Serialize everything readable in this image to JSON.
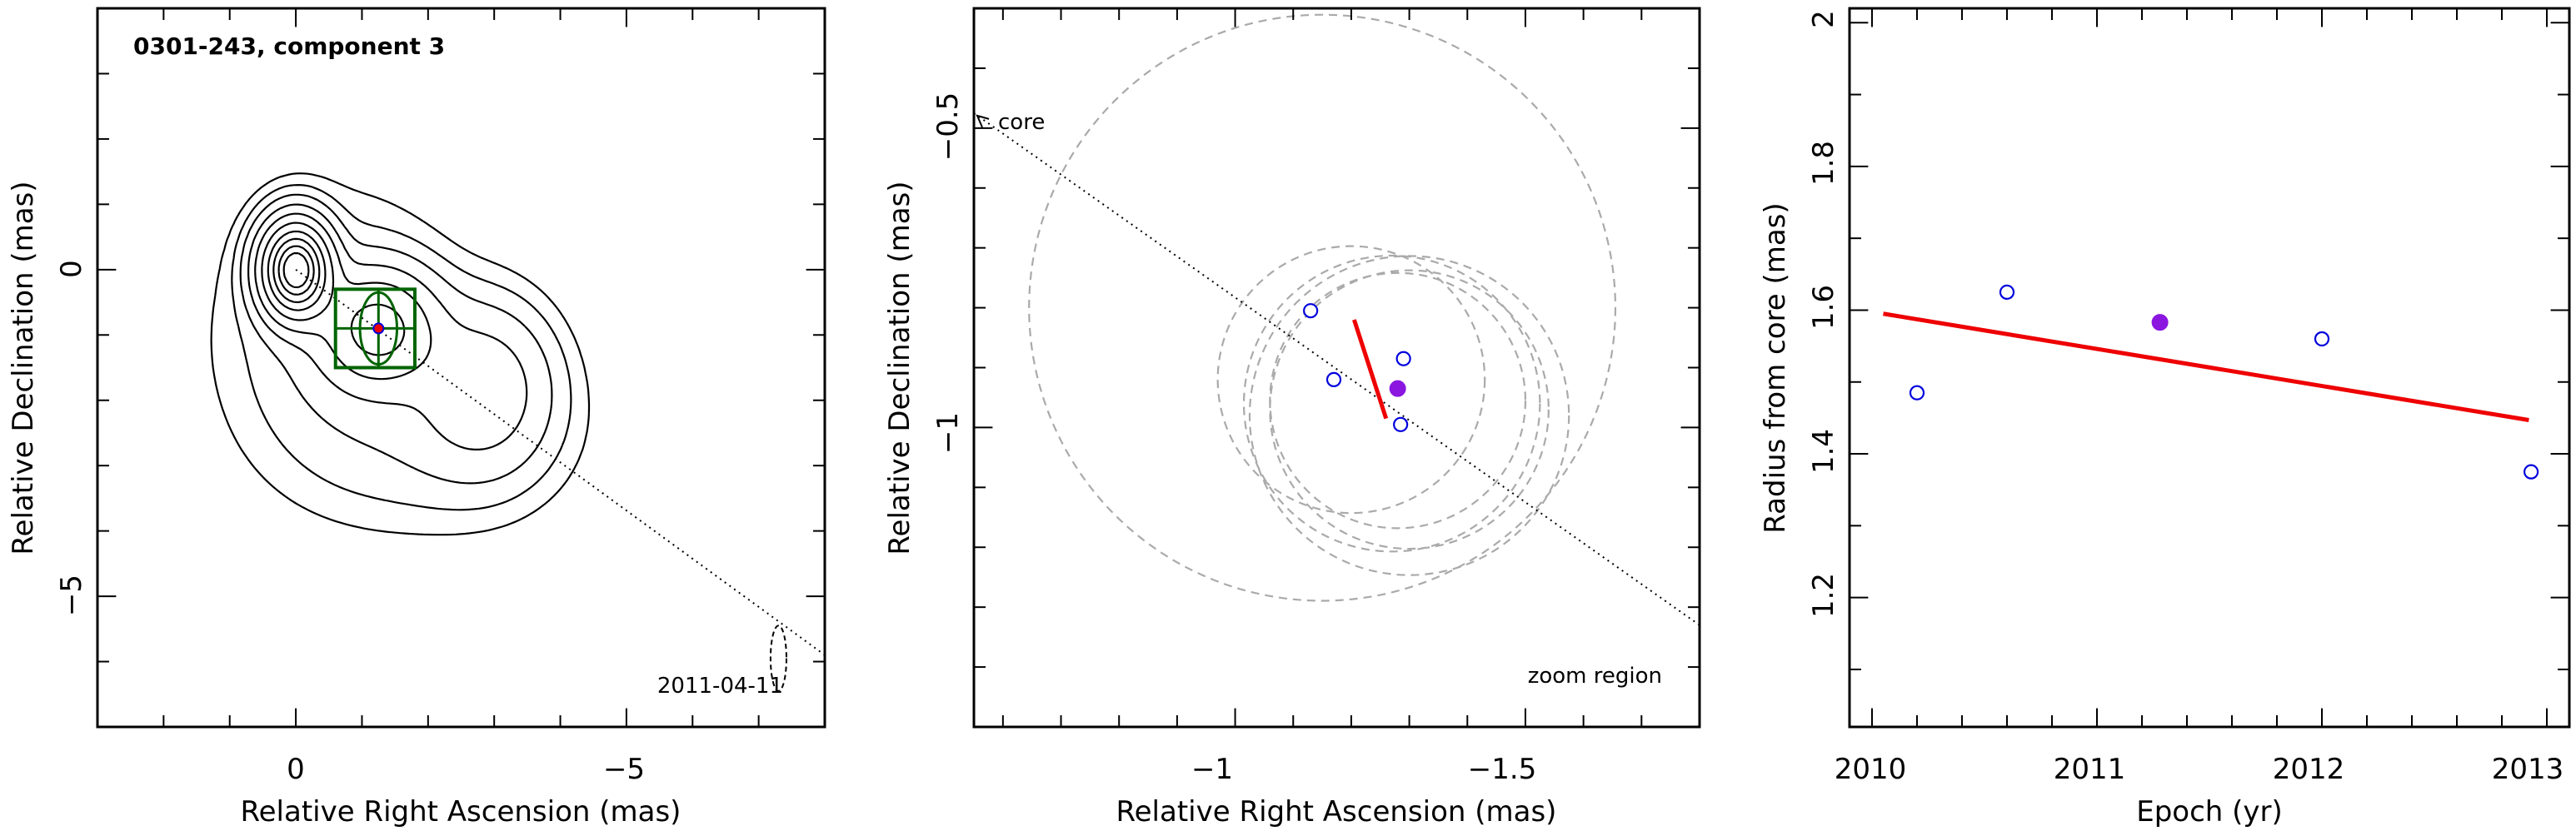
{
  "colors": {
    "contour": "#000000",
    "box": "#006400",
    "marker_open": "#0000dd",
    "marker_filled": "#8a16e0",
    "fit_line": "#ee0000",
    "circles": "#aaaaaa"
  },
  "chart_data": [
    {
      "type": "contour",
      "title": "0301-243, component 3",
      "xlabel": "Relative Right Ascension (mas)",
      "ylabel": "Relative Declination (mas)",
      "xlim": [
        3,
        -8
      ],
      "ylim": [
        -7,
        4
      ],
      "xticks": [
        "0",
        "−5"
      ],
      "yticks": [
        "0",
        "−5"
      ],
      "xtick_values": [
        0,
        -5
      ],
      "ytick_values": [
        0,
        -5
      ],
      "date_label": "2011-04-11",
      "component_position": [
        -1.25,
        -0.9
      ],
      "zoom_box": {
        "x": [
          -0.6,
          -1.8
        ],
        "y": [
          -0.3,
          -1.5
        ]
      },
      "jet_direction": {
        "from": [
          0,
          0
        ],
        "to": [
          -8,
          -5.9
        ]
      },
      "beam": {
        "x": -7.3,
        "y": -5.95,
        "major": 0.5,
        "minor": 0.12
      }
    },
    {
      "type": "scatter",
      "xlabel": "Relative Right Ascension (mas)",
      "ylabel": "Relative Declination (mas)",
      "xlim": [
        -0.55,
        -1.8
      ],
      "ylim": [
        -1.5,
        -0.3
      ],
      "xticks": [
        "−1",
        "−1.5"
      ],
      "yticks": [
        "−0.5",
        "−1"
      ],
      "xtick_values": [
        -1,
        -1.5
      ],
      "ytick_values": [
        -0.5,
        -1
      ],
      "core_label": "core",
      "region_label": "zoom region",
      "points_open": [
        {
          "x": -1.13,
          "y": -0.805
        },
        {
          "x": -1.17,
          "y": -0.92
        },
        {
          "x": -1.29,
          "y": -0.885
        },
        {
          "x": -1.285,
          "y": -0.995
        }
      ],
      "point_filled": {
        "x": -1.28,
        "y": -0.935
      },
      "fit_segment": {
        "x": [
          -1.205,
          -1.26
        ],
        "y": [
          -0.82,
          -0.985
        ]
      },
      "error_circles": [
        {
          "x": -1.15,
          "y": -0.8,
          "r": 0.505
        },
        {
          "x": -1.3,
          "y": -0.98,
          "r": 0.275
        },
        {
          "x": -1.28,
          "y": -0.955,
          "r": 0.22
        },
        {
          "x": -1.27,
          "y": -0.96,
          "r": 0.255
        },
        {
          "x": -1.2,
          "y": -0.92,
          "r": 0.23
        },
        {
          "x": -1.3,
          "y": -0.97,
          "r": 0.24
        }
      ],
      "jet_direction": {
        "from": [
          -0.55,
          -0.475
        ],
        "to": [
          -1.8,
          -1.33
        ]
      }
    },
    {
      "type": "scatter",
      "xlabel": "Epoch (yr)",
      "ylabel": "Radius from core (mas)",
      "xlim": [
        2009.9,
        2013.1
      ],
      "ylim": [
        1.02,
        2.02
      ],
      "xticks": [
        "2010",
        "2011",
        "2012",
        "2013"
      ],
      "yticks": [
        "1.2",
        "1.4",
        "1.6",
        "1.8",
        "2"
      ],
      "xtick_values": [
        2010,
        2011,
        2012,
        2013
      ],
      "ytick_values": [
        1.2,
        1.4,
        1.6,
        1.8,
        2.0
      ],
      "points_open": [
        {
          "x": 2010.2,
          "y": 1.485
        },
        {
          "x": 2010.6,
          "y": 1.625
        },
        {
          "x": 2012.0,
          "y": 1.56
        },
        {
          "x": 2012.93,
          "y": 1.375
        }
      ],
      "point_filled": {
        "x": 2011.28,
        "y": 1.583
      },
      "fit_line": {
        "x": [
          2010.05,
          2012.92
        ],
        "y": [
          1.595,
          1.447
        ]
      }
    }
  ]
}
